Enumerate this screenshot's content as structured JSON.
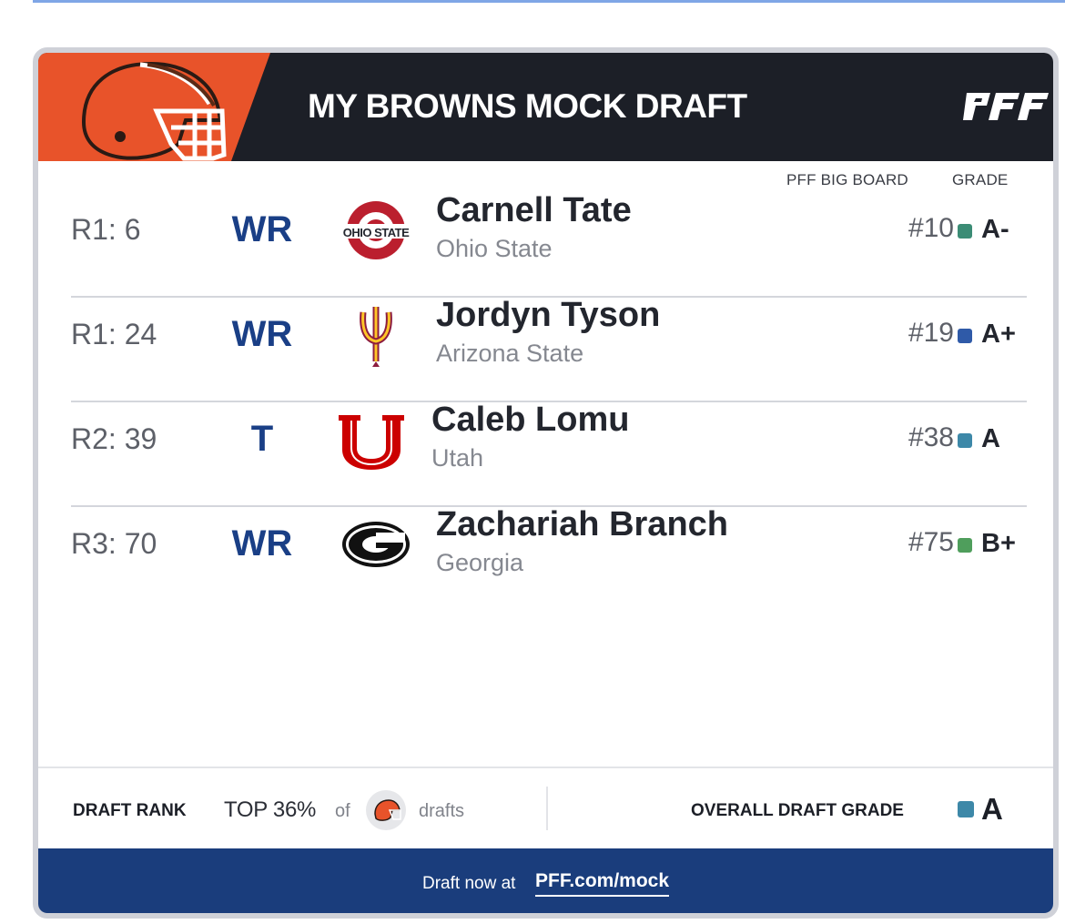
{
  "header": {
    "title": "MY BROWNS MOCK DRAFT",
    "brand": "PFF",
    "brand_color": "#e8532a"
  },
  "columns": {
    "big_board": "PFF BIG BOARD",
    "grade": "GRADE"
  },
  "picks": [
    {
      "pick": "R1: 6",
      "position": "WR",
      "player": "Carnell Tate",
      "school": "Ohio State",
      "school_logo": "ohio-state-logo",
      "big_board": "#10",
      "grade": "A-",
      "grade_color": "#3b8c75"
    },
    {
      "pick": "R1: 24",
      "position": "WR",
      "player": "Jordyn Tyson",
      "school": "Arizona State",
      "school_logo": "arizona-state-pitchfork-logo",
      "big_board": "#19",
      "grade": "A+",
      "grade_color": "#2f5aa8"
    },
    {
      "pick": "R2: 39",
      "position": "T",
      "player": "Caleb Lomu",
      "school": "Utah",
      "school_logo": "utah-block-u-logo",
      "big_board": "#38",
      "grade": "A",
      "grade_color": "#3d88a8"
    },
    {
      "pick": "R3: 70",
      "position": "WR",
      "player": "Zachariah Branch",
      "school": "Georgia",
      "school_logo": "georgia-g-logo",
      "big_board": "#75",
      "grade": "B+",
      "grade_color": "#4f9e5c"
    }
  ],
  "footer": {
    "draft_rank_label": "DRAFT RANK",
    "top_text": "TOP 36%",
    "of_text": "of",
    "drafts_text": "drafts",
    "overall_label": "OVERALL DRAFT GRADE",
    "overall_grade": "A",
    "overall_grade_color": "#3d88a8"
  },
  "cta": {
    "text": "Draft now at",
    "link": "PFF.com/mock",
    "background": "#1a3d7c"
  }
}
